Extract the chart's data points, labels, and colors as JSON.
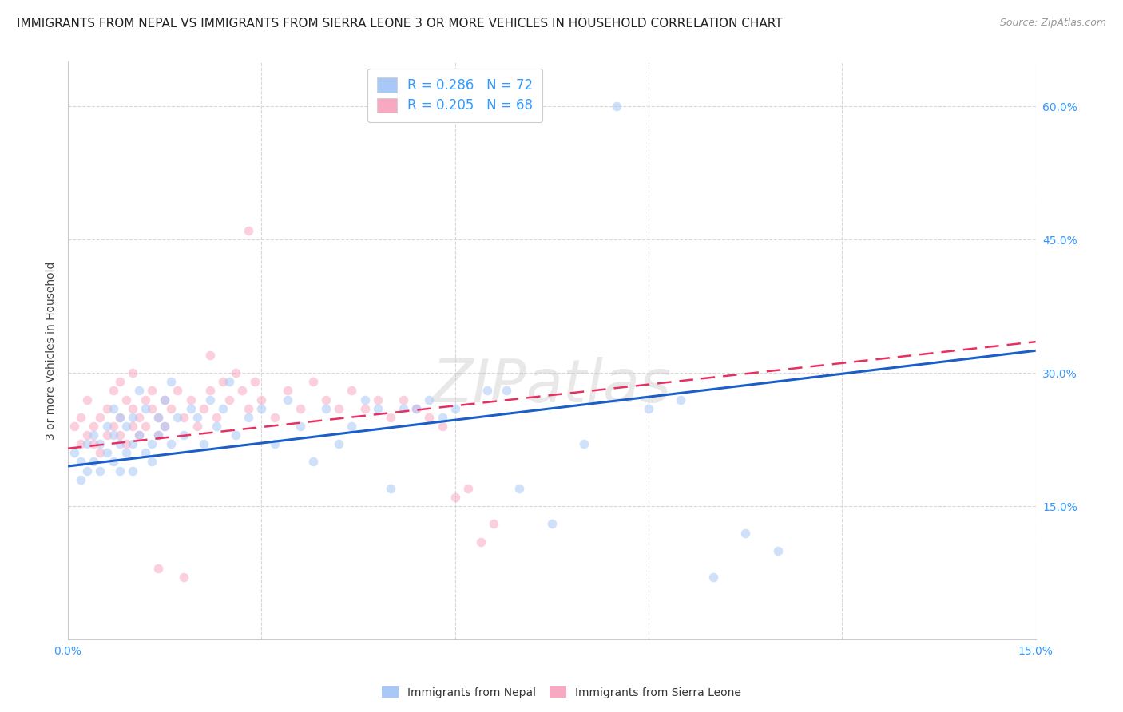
{
  "title": "IMMIGRANTS FROM NEPAL VS IMMIGRANTS FROM SIERRA LEONE 3 OR MORE VEHICLES IN HOUSEHOLD CORRELATION CHART",
  "source": "Source: ZipAtlas.com",
  "ylabel": "3 or more Vehicles in Household",
  "xlim": [
    0.0,
    0.15
  ],
  "ylim": [
    0.0,
    0.65
  ],
  "x_ticks": [
    0.0,
    0.03,
    0.06,
    0.09,
    0.12,
    0.15
  ],
  "x_tick_labels": [
    "0.0%",
    "",
    "",
    "",
    "",
    "15.0%"
  ],
  "y_ticks_right": [
    0.15,
    0.3,
    0.45,
    0.6
  ],
  "y_tick_labels_right": [
    "15.0%",
    "30.0%",
    "45.0%",
    "60.0%"
  ],
  "nepal_color": "#a8c8f8",
  "sierra_leone_color": "#f8a8c0",
  "nepal_line_color": "#1a5fc8",
  "sierra_leone_line_color": "#e83060",
  "nepal_R": 0.286,
  "nepal_N": 72,
  "sierra_leone_R": 0.205,
  "sierra_leone_N": 68,
  "legend_nepal_label": "R = 0.286   N = 72",
  "legend_sierra_label": "R = 0.205   N = 68",
  "nepal_line_x0": 0.0,
  "nepal_line_y0": 0.195,
  "nepal_line_x1": 0.15,
  "nepal_line_y1": 0.325,
  "sierra_line_x0": 0.0,
  "sierra_line_y0": 0.215,
  "sierra_line_x1": 0.15,
  "sierra_line_y1": 0.335,
  "background_color": "#ffffff",
  "grid_color": "#d8d8d8",
  "title_fontsize": 11,
  "axis_label_fontsize": 10,
  "tick_fontsize": 10,
  "legend_fontsize": 12,
  "marker_size": 70,
  "marker_alpha": 0.55,
  "nepal_x": [
    0.001,
    0.002,
    0.002,
    0.003,
    0.003,
    0.004,
    0.004,
    0.005,
    0.005,
    0.006,
    0.006,
    0.007,
    0.007,
    0.007,
    0.008,
    0.008,
    0.008,
    0.009,
    0.009,
    0.01,
    0.01,
    0.01,
    0.011,
    0.011,
    0.012,
    0.012,
    0.013,
    0.013,
    0.014,
    0.014,
    0.015,
    0.015,
    0.016,
    0.016,
    0.017,
    0.018,
    0.019,
    0.02,
    0.021,
    0.022,
    0.023,
    0.024,
    0.025,
    0.026,
    0.028,
    0.03,
    0.032,
    0.034,
    0.036,
    0.038,
    0.04,
    0.042,
    0.044,
    0.046,
    0.048,
    0.05,
    0.052,
    0.054,
    0.056,
    0.058,
    0.06,
    0.065,
    0.068,
    0.07,
    0.075,
    0.08,
    0.085,
    0.09,
    0.095,
    0.1,
    0.105,
    0.11
  ],
  "nepal_y": [
    0.21,
    0.2,
    0.18,
    0.22,
    0.19,
    0.23,
    0.2,
    0.22,
    0.19,
    0.24,
    0.21,
    0.23,
    0.2,
    0.26,
    0.22,
    0.19,
    0.25,
    0.21,
    0.24,
    0.22,
    0.25,
    0.19,
    0.23,
    0.28,
    0.21,
    0.26,
    0.22,
    0.2,
    0.25,
    0.23,
    0.24,
    0.27,
    0.22,
    0.29,
    0.25,
    0.23,
    0.26,
    0.25,
    0.22,
    0.27,
    0.24,
    0.26,
    0.29,
    0.23,
    0.25,
    0.26,
    0.22,
    0.27,
    0.24,
    0.2,
    0.26,
    0.22,
    0.24,
    0.27,
    0.26,
    0.17,
    0.26,
    0.26,
    0.27,
    0.25,
    0.26,
    0.28,
    0.28,
    0.17,
    0.13,
    0.22,
    0.6,
    0.26,
    0.27,
    0.07,
    0.12,
    0.1
  ],
  "sierra_x": [
    0.001,
    0.002,
    0.002,
    0.003,
    0.003,
    0.004,
    0.004,
    0.005,
    0.005,
    0.006,
    0.006,
    0.007,
    0.007,
    0.008,
    0.008,
    0.009,
    0.009,
    0.01,
    0.01,
    0.011,
    0.011,
    0.012,
    0.012,
    0.013,
    0.013,
    0.014,
    0.014,
    0.015,
    0.015,
    0.016,
    0.017,
    0.018,
    0.019,
    0.02,
    0.021,
    0.022,
    0.023,
    0.024,
    0.025,
    0.026,
    0.027,
    0.028,
    0.029,
    0.03,
    0.032,
    0.034,
    0.036,
    0.038,
    0.04,
    0.042,
    0.044,
    0.046,
    0.048,
    0.05,
    0.052,
    0.054,
    0.056,
    0.058,
    0.06,
    0.062,
    0.064,
    0.066,
    0.028,
    0.014,
    0.018,
    0.022,
    0.01,
    0.008
  ],
  "sierra_y": [
    0.24,
    0.22,
    0.25,
    0.23,
    0.27,
    0.22,
    0.24,
    0.25,
    0.21,
    0.23,
    0.26,
    0.24,
    0.28,
    0.23,
    0.25,
    0.27,
    0.22,
    0.24,
    0.26,
    0.25,
    0.23,
    0.27,
    0.24,
    0.26,
    0.28,
    0.25,
    0.23,
    0.27,
    0.24,
    0.26,
    0.28,
    0.25,
    0.27,
    0.24,
    0.26,
    0.28,
    0.25,
    0.29,
    0.27,
    0.3,
    0.28,
    0.26,
    0.29,
    0.27,
    0.25,
    0.28,
    0.26,
    0.29,
    0.27,
    0.26,
    0.28,
    0.26,
    0.27,
    0.25,
    0.27,
    0.26,
    0.25,
    0.24,
    0.16,
    0.17,
    0.11,
    0.13,
    0.46,
    0.08,
    0.07,
    0.32,
    0.3,
    0.29
  ]
}
